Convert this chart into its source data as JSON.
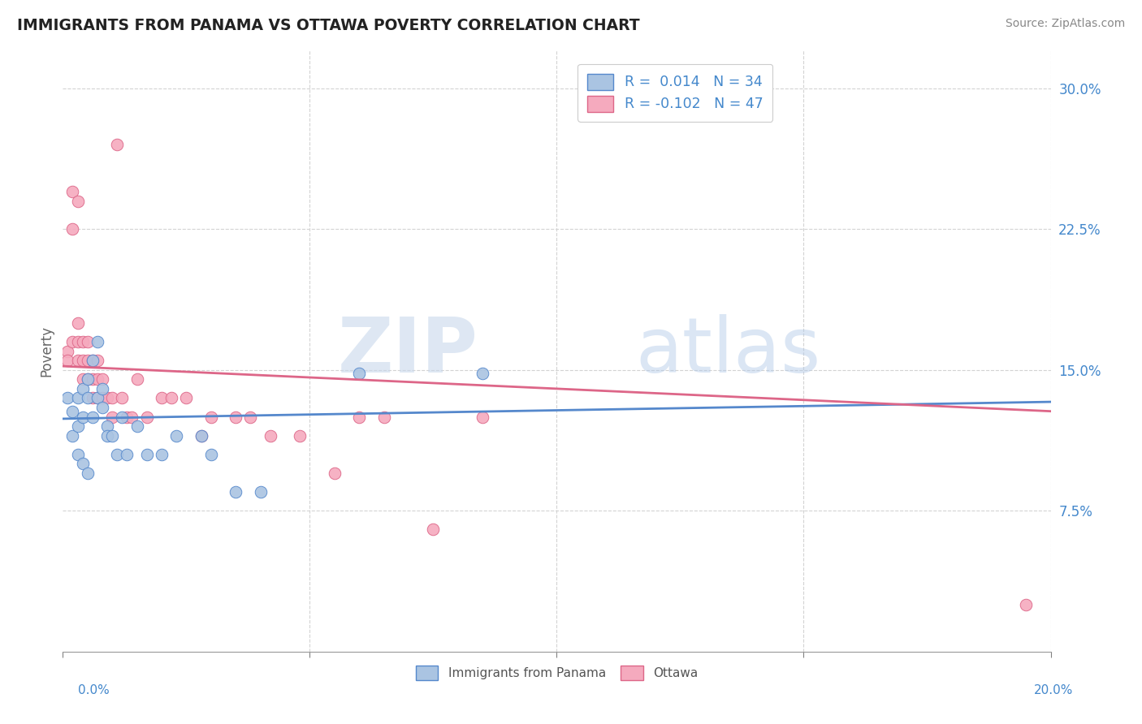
{
  "title": "IMMIGRANTS FROM PANAMA VS OTTAWA POVERTY CORRELATION CHART",
  "source": "Source: ZipAtlas.com",
  "ylabel": "Poverty",
  "yticks": [
    0.075,
    0.15,
    0.225,
    0.3
  ],
  "ytick_labels": [
    "7.5%",
    "15.0%",
    "22.5%",
    "30.0%"
  ],
  "xlim": [
    0.0,
    0.2
  ],
  "ylim": [
    0.0,
    0.32
  ],
  "watermark_zip": "ZIP",
  "watermark_atlas": "atlas",
  "legend_r1": "R =  0.014   N = 34",
  "legend_r2": "R = -0.102   N = 47",
  "series1_color": "#aac4e2",
  "series2_color": "#f5aabe",
  "line1_color": "#5588cc",
  "line2_color": "#dd6688",
  "series1_label": "Immigrants from Panama",
  "series2_label": "Ottawa",
  "blue_scatter_x": [
    0.001,
    0.002,
    0.002,
    0.003,
    0.003,
    0.003,
    0.004,
    0.004,
    0.004,
    0.005,
    0.005,
    0.005,
    0.006,
    0.006,
    0.007,
    0.007,
    0.008,
    0.008,
    0.009,
    0.009,
    0.01,
    0.011,
    0.012,
    0.013,
    0.015,
    0.017,
    0.02,
    0.023,
    0.028,
    0.03,
    0.035,
    0.04,
    0.06,
    0.085
  ],
  "blue_scatter_y": [
    0.135,
    0.128,
    0.115,
    0.135,
    0.12,
    0.105,
    0.14,
    0.125,
    0.1,
    0.145,
    0.135,
    0.095,
    0.155,
    0.125,
    0.165,
    0.135,
    0.14,
    0.13,
    0.12,
    0.115,
    0.115,
    0.105,
    0.125,
    0.105,
    0.12,
    0.105,
    0.105,
    0.115,
    0.115,
    0.105,
    0.085,
    0.085,
    0.148,
    0.148
  ],
  "pink_scatter_x": [
    0.001,
    0.001,
    0.002,
    0.002,
    0.002,
    0.003,
    0.003,
    0.003,
    0.003,
    0.004,
    0.004,
    0.004,
    0.005,
    0.005,
    0.005,
    0.006,
    0.006,
    0.006,
    0.007,
    0.007,
    0.007,
    0.008,
    0.008,
    0.009,
    0.01,
    0.01,
    0.011,
    0.012,
    0.013,
    0.014,
    0.015,
    0.017,
    0.02,
    0.022,
    0.025,
    0.028,
    0.03,
    0.035,
    0.038,
    0.042,
    0.048,
    0.055,
    0.06,
    0.065,
    0.075,
    0.085,
    0.195
  ],
  "pink_scatter_y": [
    0.16,
    0.155,
    0.245,
    0.225,
    0.165,
    0.24,
    0.175,
    0.165,
    0.155,
    0.165,
    0.155,
    0.145,
    0.165,
    0.155,
    0.145,
    0.155,
    0.145,
    0.135,
    0.155,
    0.145,
    0.135,
    0.145,
    0.135,
    0.135,
    0.135,
    0.125,
    0.27,
    0.135,
    0.125,
    0.125,
    0.145,
    0.125,
    0.135,
    0.135,
    0.135,
    0.115,
    0.125,
    0.125,
    0.125,
    0.115,
    0.115,
    0.095,
    0.125,
    0.125,
    0.065,
    0.125,
    0.025
  ],
  "blue_line_x0": 0.0,
  "blue_line_x1": 0.2,
  "blue_line_y0": 0.124,
  "blue_line_y1": 0.133,
  "pink_line_x0": 0.0,
  "pink_line_x1": 0.2,
  "pink_line_y0": 0.152,
  "pink_line_y1": 0.128
}
